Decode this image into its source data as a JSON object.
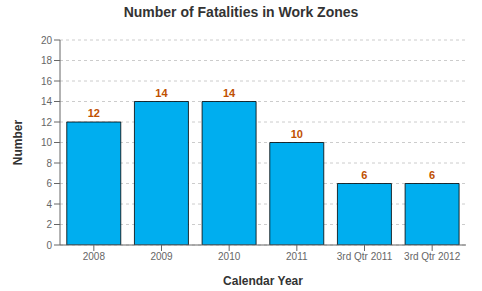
{
  "chart_data": {
    "type": "bar",
    "title": "Number of Fatalities in Work Zones",
    "xlabel": "Calendar Year",
    "ylabel": "Number",
    "categories": [
      "2008",
      "2009",
      "2010",
      "2011",
      "3rd Qtr 2011",
      "3rd Qtr 2012"
    ],
    "values": [
      12,
      14,
      14,
      10,
      6,
      6
    ],
    "color": "#00AEEF",
    "ylim": [
      0,
      20
    ],
    "yticks": [
      0,
      2,
      4,
      6,
      8,
      10,
      12,
      14,
      16,
      18,
      20
    ],
    "grid": true,
    "data_labels": true
  }
}
